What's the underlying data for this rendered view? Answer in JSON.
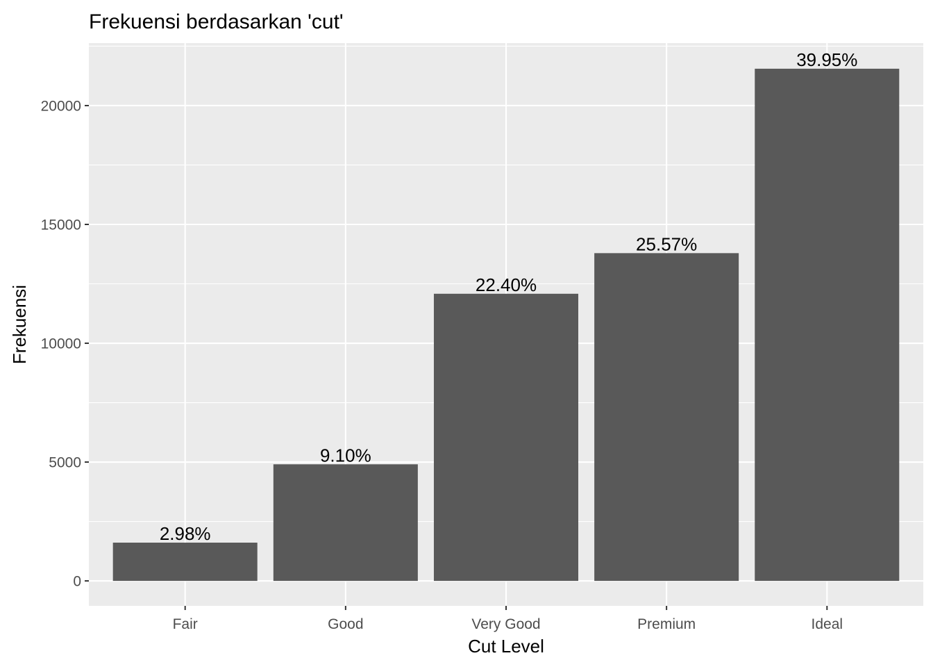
{
  "chart_data": {
    "type": "bar",
    "title": "Frekuensi berdasarkan 'cut'",
    "xlabel": "Cut Level",
    "ylabel": "Frekuensi",
    "categories": [
      "Fair",
      "Good",
      "Very Good",
      "Premium",
      "Ideal"
    ],
    "values": [
      1610,
      4906,
      12082,
      13791,
      21551
    ],
    "data_labels": [
      "2.98%",
      "9.10%",
      "22.40%",
      "25.57%",
      "39.95%"
    ],
    "ylim": [
      -1050,
      22630
    ],
    "yticks": [
      0,
      5000,
      10000,
      15000,
      20000
    ],
    "ytick_labels": [
      "0",
      "5000",
      "10000",
      "15000",
      "20000"
    ],
    "grid": true,
    "colors": {
      "bar": "#595959",
      "panel_background": "#ebebeb",
      "grid": "#ffffff"
    }
  }
}
